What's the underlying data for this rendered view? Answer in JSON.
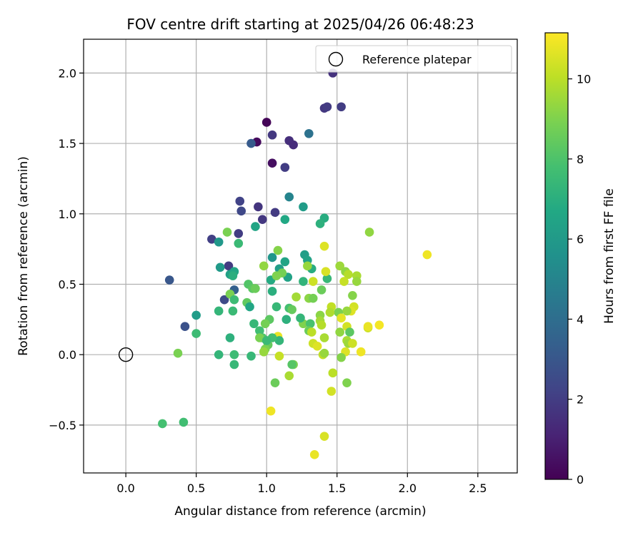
{
  "chart_data": {
    "type": "scatter",
    "title": "FOV centre drift starting at 2025/04/26 06:48:23",
    "xlabel": "Angular distance from reference (arcmin)",
    "ylabel": "Rotation from reference (arcmin)",
    "xlim": [
      -0.3,
      2.78
    ],
    "ylim": [
      -0.84,
      2.24
    ],
    "xticks": [
      "0.0",
      "0.5",
      "1.0",
      "1.5",
      "2.0",
      "2.5"
    ],
    "xtick_values": [
      0,
      0.5,
      1.0,
      1.5,
      2.0,
      2.5
    ],
    "yticks": [
      "−0.5",
      "0.0",
      "0.5",
      "1.0",
      "1.5",
      "2.0"
    ],
    "ytick_values": [
      -0.5,
      0,
      0.5,
      1.0,
      1.5,
      2.0
    ],
    "grid": true,
    "legend": {
      "position": "top-right",
      "entries": [
        "Reference platepar"
      ]
    },
    "reference_point": {
      "x": 0.0,
      "y": 0.0,
      "label": "Reference platepar"
    },
    "colorbar": {
      "label": "Hours from first FF file",
      "min": 0,
      "max": 11.15,
      "ticks": [
        "0",
        "2",
        "4",
        "6",
        "8",
        "10"
      ],
      "tick_values": [
        0,
        2,
        4,
        6,
        8,
        10
      ],
      "colormap": "viridis"
    },
    "points": [
      {
        "x": 1.0,
        "y": 1.65,
        "c": 0.1
      },
      {
        "x": 0.93,
        "y": 1.51,
        "c": 0.3
      },
      {
        "x": 1.04,
        "y": 1.36,
        "c": 0.4
      },
      {
        "x": 1.47,
        "y": 2.0,
        "c": 1.6
      },
      {
        "x": 1.41,
        "y": 1.75,
        "c": 1.8
      },
      {
        "x": 1.43,
        "y": 1.76,
        "c": 1.9
      },
      {
        "x": 1.53,
        "y": 1.76,
        "c": 2.0
      },
      {
        "x": 1.04,
        "y": 1.56,
        "c": 1.8
      },
      {
        "x": 1.16,
        "y": 1.52,
        "c": 1.5
      },
      {
        "x": 1.19,
        "y": 1.49,
        "c": 1.4
      },
      {
        "x": 1.13,
        "y": 1.33,
        "c": 2.0
      },
      {
        "x": 1.3,
        "y": 1.57,
        "c": 4.2
      },
      {
        "x": 0.89,
        "y": 1.5,
        "c": 3.2
      },
      {
        "x": 0.81,
        "y": 1.09,
        "c": 2.2
      },
      {
        "x": 0.82,
        "y": 1.02,
        "c": 2.4
      },
      {
        "x": 0.94,
        "y": 1.05,
        "c": 1.7
      },
      {
        "x": 0.97,
        "y": 0.96,
        "c": 1.8
      },
      {
        "x": 1.06,
        "y": 1.01,
        "c": 1.9
      },
      {
        "x": 0.61,
        "y": 0.82,
        "c": 2.1
      },
      {
        "x": 0.8,
        "y": 0.86,
        "c": 2.0
      },
      {
        "x": 0.31,
        "y": 0.53,
        "c": 3.0
      },
      {
        "x": 0.42,
        "y": 0.2,
        "c": 2.8
      },
      {
        "x": 0.73,
        "y": 0.63,
        "c": 1.9
      },
      {
        "x": 0.7,
        "y": 0.39,
        "c": 2.5
      },
      {
        "x": 0.77,
        "y": 0.46,
        "c": 3.4
      },
      {
        "x": 1.16,
        "y": 1.12,
        "c": 5.0
      },
      {
        "x": 1.26,
        "y": 1.05,
        "c": 6.1
      },
      {
        "x": 1.13,
        "y": 0.96,
        "c": 6.7
      },
      {
        "x": 1.41,
        "y": 0.97,
        "c": 6.9
      },
      {
        "x": 1.38,
        "y": 0.93,
        "c": 7.1
      },
      {
        "x": 0.92,
        "y": 0.91,
        "c": 6.5
      },
      {
        "x": 0.66,
        "y": 0.8,
        "c": 5.9
      },
      {
        "x": 0.72,
        "y": 0.87,
        "c": 8.9
      },
      {
        "x": 0.8,
        "y": 0.79,
        "c": 7.5
      },
      {
        "x": 0.67,
        "y": 0.62,
        "c": 6.0
      },
      {
        "x": 0.74,
        "y": 0.57,
        "c": 6.3
      },
      {
        "x": 0.77,
        "y": 0.59,
        "c": 6.6
      },
      {
        "x": 0.76,
        "y": 0.56,
        "c": 7.0
      },
      {
        "x": 1.04,
        "y": 0.69,
        "c": 5.8
      },
      {
        "x": 1.09,
        "y": 0.61,
        "c": 6.2
      },
      {
        "x": 1.13,
        "y": 0.66,
        "c": 6.5
      },
      {
        "x": 1.15,
        "y": 0.55,
        "c": 6.4
      },
      {
        "x": 1.03,
        "y": 0.53,
        "c": 6.8
      },
      {
        "x": 1.27,
        "y": 0.71,
        "c": 6.2
      },
      {
        "x": 1.29,
        "y": 0.67,
        "c": 6.4
      },
      {
        "x": 1.32,
        "y": 0.61,
        "c": 6.9
      },
      {
        "x": 1.26,
        "y": 0.52,
        "c": 7.2
      },
      {
        "x": 1.43,
        "y": 0.54,
        "c": 7.4
      },
      {
        "x": 1.08,
        "y": 0.74,
        "c": 9.1
      },
      {
        "x": 0.98,
        "y": 0.63,
        "c": 9.3
      },
      {
        "x": 1.11,
        "y": 0.58,
        "c": 8.8
      },
      {
        "x": 1.07,
        "y": 0.56,
        "c": 9.0
      },
      {
        "x": 0.87,
        "y": 0.5,
        "c": 8.1
      },
      {
        "x": 0.9,
        "y": 0.47,
        "c": 8.3
      },
      {
        "x": 0.92,
        "y": 0.47,
        "c": 8.6
      },
      {
        "x": 0.74,
        "y": 0.43,
        "c": 8.9
      },
      {
        "x": 0.86,
        "y": 0.37,
        "c": 8.4
      },
      {
        "x": 0.77,
        "y": 0.39,
        "c": 7.6
      },
      {
        "x": 0.88,
        "y": 0.34,
        "c": 6.6
      },
      {
        "x": 1.04,
        "y": 0.45,
        "c": 7.0
      },
      {
        "x": 1.07,
        "y": 0.34,
        "c": 7.4
      },
      {
        "x": 1.16,
        "y": 0.33,
        "c": 7.8
      },
      {
        "x": 1.14,
        "y": 0.25,
        "c": 7.1
      },
      {
        "x": 1.18,
        "y": 0.32,
        "c": 8.5
      },
      {
        "x": 1.21,
        "y": 0.41,
        "c": 9.6
      },
      {
        "x": 1.3,
        "y": 0.4,
        "c": 9.2
      },
      {
        "x": 1.33,
        "y": 0.4,
        "c": 8.8
      },
      {
        "x": 1.39,
        "y": 0.46,
        "c": 8.6
      },
      {
        "x": 1.42,
        "y": 0.59,
        "c": 10.5
      },
      {
        "x": 1.41,
        "y": 0.77,
        "c": 10.6
      },
      {
        "x": 1.33,
        "y": 0.52,
        "c": 10.3
      },
      {
        "x": 1.29,
        "y": 0.63,
        "c": 9.4
      },
      {
        "x": 1.52,
        "y": 0.63,
        "c": 9.5
      },
      {
        "x": 1.56,
        "y": 0.59,
        "c": 9.3
      },
      {
        "x": 1.58,
        "y": 0.57,
        "c": 9.9
      },
      {
        "x": 1.64,
        "y": 0.56,
        "c": 9.7
      },
      {
        "x": 1.64,
        "y": 0.52,
        "c": 9.4
      },
      {
        "x": 1.55,
        "y": 0.52,
        "c": 10.2
      },
      {
        "x": 1.73,
        "y": 0.87,
        "c": 9.3
      },
      {
        "x": 2.14,
        "y": 0.71,
        "c": 10.9
      },
      {
        "x": 1.61,
        "y": 0.42,
        "c": 9.1
      },
      {
        "x": 1.62,
        "y": 0.34,
        "c": 10.4
      },
      {
        "x": 1.6,
        "y": 0.31,
        "c": 10.6
      },
      {
        "x": 1.57,
        "y": 0.31,
        "c": 9.4
      },
      {
        "x": 1.51,
        "y": 0.3,
        "c": 8.9
      },
      {
        "x": 1.46,
        "y": 0.34,
        "c": 10.1
      },
      {
        "x": 1.45,
        "y": 0.3,
        "c": 9.8
      },
      {
        "x": 1.38,
        "y": 0.28,
        "c": 9.2
      },
      {
        "x": 1.38,
        "y": 0.24,
        "c": 9.6
      },
      {
        "x": 1.39,
        "y": 0.21,
        "c": 9.9
      },
      {
        "x": 1.26,
        "y": 0.22,
        "c": 9.0
      },
      {
        "x": 1.24,
        "y": 0.26,
        "c": 7.3
      },
      {
        "x": 1.31,
        "y": 0.22,
        "c": 7.9
      },
      {
        "x": 1.3,
        "y": 0.17,
        "c": 8.6
      },
      {
        "x": 1.32,
        "y": 0.16,
        "c": 10.0
      },
      {
        "x": 1.41,
        "y": 0.12,
        "c": 9.7
      },
      {
        "x": 1.33,
        "y": 0.08,
        "c": 10.3
      },
      {
        "x": 1.36,
        "y": 0.06,
        "c": 10.6
      },
      {
        "x": 1.4,
        "y": 0.0,
        "c": 10.1
      },
      {
        "x": 1.41,
        "y": 0.01,
        "c": 9.4
      },
      {
        "x": 1.53,
        "y": 0.26,
        "c": 10.7
      },
      {
        "x": 1.57,
        "y": 0.2,
        "c": 10.4
      },
      {
        "x": 1.52,
        "y": 0.16,
        "c": 9.3
      },
      {
        "x": 1.59,
        "y": 0.16,
        "c": 8.3
      },
      {
        "x": 1.57,
        "y": 0.1,
        "c": 9.7
      },
      {
        "x": 1.58,
        "y": 0.08,
        "c": 9.5
      },
      {
        "x": 1.61,
        "y": 0.08,
        "c": 10.3
      },
      {
        "x": 1.56,
        "y": 0.02,
        "c": 10.6
      },
      {
        "x": 1.53,
        "y": -0.02,
        "c": 9.1
      },
      {
        "x": 1.67,
        "y": 0.02,
        "c": 10.9
      },
      {
        "x": 1.72,
        "y": 0.19,
        "c": 10.3
      },
      {
        "x": 1.72,
        "y": 0.2,
        "c": 10.8
      },
      {
        "x": 1.8,
        "y": 0.21,
        "c": 11.0
      },
      {
        "x": 1.47,
        "y": -0.13,
        "c": 10.0
      },
      {
        "x": 1.57,
        "y": -0.2,
        "c": 9.0
      },
      {
        "x": 1.46,
        "y": -0.26,
        "c": 10.4
      },
      {
        "x": 1.41,
        "y": -0.58,
        "c": 10.5
      },
      {
        "x": 1.34,
        "y": -0.71,
        "c": 10.8
      },
      {
        "x": 1.03,
        "y": -0.4,
        "c": 10.9
      },
      {
        "x": 1.06,
        "y": -0.2,
        "c": 8.6
      },
      {
        "x": 1.16,
        "y": -0.15,
        "c": 9.7
      },
      {
        "x": 1.19,
        "y": -0.07,
        "c": 9.0
      },
      {
        "x": 1.18,
        "y": -0.07,
        "c": 8.2
      },
      {
        "x": 1.09,
        "y": -0.01,
        "c": 10.2
      },
      {
        "x": 1.08,
        "y": 0.13,
        "c": 10.8
      },
      {
        "x": 1.09,
        "y": 0.1,
        "c": 7.3
      },
      {
        "x": 1.04,
        "y": 0.12,
        "c": 7.7
      },
      {
        "x": 1.01,
        "y": 0.07,
        "c": 8.5
      },
      {
        "x": 0.99,
        "y": 0.04,
        "c": 8.9
      },
      {
        "x": 0.98,
        "y": 0.02,
        "c": 9.4
      },
      {
        "x": 0.97,
        "y": 0.12,
        "c": 8.1
      },
      {
        "x": 0.95,
        "y": 0.17,
        "c": 7.7
      },
      {
        "x": 0.91,
        "y": 0.22,
        "c": 7.4
      },
      {
        "x": 1.02,
        "y": 0.25,
        "c": 8.3
      },
      {
        "x": 0.99,
        "y": 0.22,
        "c": 8.8
      },
      {
        "x": 0.95,
        "y": 0.12,
        "c": 8.9
      },
      {
        "x": 1.0,
        "y": 0.1,
        "c": 7.5
      },
      {
        "x": 0.89,
        "y": -0.01,
        "c": 7.4
      },
      {
        "x": 0.77,
        "y": 0.0,
        "c": 7.6
      },
      {
        "x": 0.66,
        "y": 0.0,
        "c": 7.3
      },
      {
        "x": 0.77,
        "y": -0.07,
        "c": 7.4
      },
      {
        "x": 0.74,
        "y": 0.12,
        "c": 7.1
      },
      {
        "x": 0.76,
        "y": 0.31,
        "c": 7.5
      },
      {
        "x": 0.66,
        "y": 0.31,
        "c": 7.3
      },
      {
        "x": 0.5,
        "y": 0.28,
        "c": 6.1
      },
      {
        "x": 0.5,
        "y": 0.15,
        "c": 7.6
      },
      {
        "x": 0.37,
        "y": 0.01,
        "c": 8.9
      },
      {
        "x": 0.26,
        "y": -0.49,
        "c": 7.8
      },
      {
        "x": 0.41,
        "y": -0.48,
        "c": 7.7
      }
    ]
  }
}
